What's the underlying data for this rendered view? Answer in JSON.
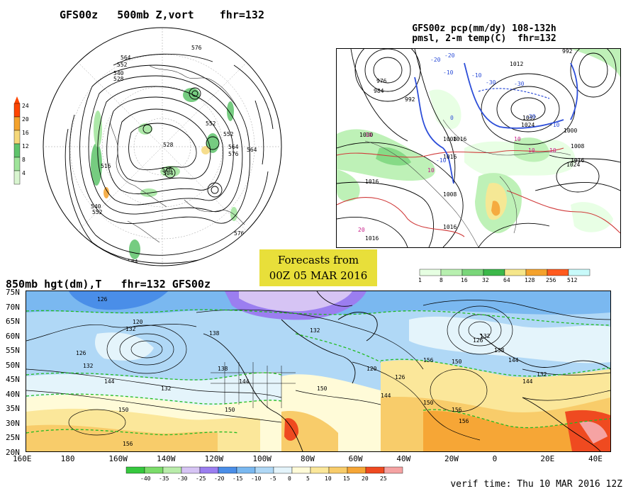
{
  "upper_left": {
    "title": "GFS00z   500mb Z,vort    fhr=132",
    "legend_ticks": [
      "24",
      "20",
      "16",
      "12",
      "8",
      "4"
    ],
    "legend_colors": [
      "#ff4500",
      "#f4a22c",
      "#f5d87a",
      "#5fc46b",
      "#9fe49a",
      "#d9f5d0"
    ],
    "contour_labels": [
      "564",
      "552",
      "540",
      "528",
      "576",
      "552",
      "552",
      "564",
      "576",
      "516",
      "516",
      "540",
      "552",
      "528",
      "504",
      "564",
      "576",
      "564"
    ]
  },
  "upper_right": {
    "title_line1": "GFS00z pcp(mm/dy) 108-132h",
    "title_line2": "pmsl, 2-m temp(C)  fhr=132",
    "legend_ticks": [
      "1",
      "8",
      "16",
      "32",
      "64",
      "128",
      "256",
      "512"
    ],
    "legend_colors": [
      "#e6ffe2",
      "#b8f0b0",
      "#7ad67a",
      "#3cb84a",
      "#f5e68a",
      "#f4a22c",
      "#ff5a1e",
      "#c8fafa"
    ],
    "pressure_labels": [
      "976",
      "984",
      "992",
      "1000",
      "1008",
      "1016",
      "1024",
      "1032",
      "1012",
      "1000",
      "1008",
      "1016",
      "1016",
      "1008",
      "1016",
      "1024",
      "1016",
      "1016",
      "992"
    ],
    "temp_labels_blue": [
      "-20",
      "-10",
      "-30",
      "-30",
      "-20",
      "-10",
      "-20",
      "-10",
      "-10",
      "0"
    ],
    "temp_labels_red": [
      "10",
      "10",
      "10",
      "20",
      "10",
      "10"
    ]
  },
  "forecast_box": {
    "line1": "Forecasts from",
    "line2": "00Z 05 MAR 2016"
  },
  "lower": {
    "title": "850mb hgt(dm),T   fhr=132 GFS00z",
    "lat_labels": [
      "75N",
      "70N",
      "65N",
      "60N",
      "55N",
      "50N",
      "45N",
      "40N",
      "35N",
      "30N",
      "25N",
      "20N"
    ],
    "lon_labels": [
      "160E",
      "180",
      "160W",
      "140W",
      "120W",
      "100W",
      "80W",
      "60W",
      "40W",
      "20W",
      "0",
      "20E",
      "40E"
    ],
    "height_labels": [
      "126",
      "120",
      "132",
      "126",
      "132",
      "144",
      "150",
      "132",
      "138",
      "150",
      "144",
      "138",
      "132",
      "120",
      "126",
      "156",
      "150",
      "144",
      "150",
      "156",
      "156",
      "126",
      "132",
      "138",
      "144",
      "150",
      "156",
      "144",
      "132"
    ],
    "legend_ticks": [
      "-40",
      "-35",
      "-30",
      "-25",
      "-20",
      "-15",
      "-10",
      "-5",
      "0",
      "5",
      "10",
      "15",
      "20",
      "25"
    ],
    "legend_colors": [
      "#36c83e",
      "#7bdc6a",
      "#b9ecaa",
      "#d6c4f4",
      "#9b7ef0",
      "#4a8ee8",
      "#7ab8f0",
      "#b0d8f6",
      "#e4f4fb",
      "#fffbd8",
      "#fbe79a",
      "#f8cc6a",
      "#f6a636",
      "#ef4a20",
      "#f5a3a3"
    ],
    "verif_time": "verif time: Thu 10 MAR 2016 12Z"
  },
  "colors": {
    "contour": "#000000",
    "temp_dash": "#22bb22",
    "ocean_cold": "#b8dcf4",
    "land_warm": "#f5d78a"
  }
}
